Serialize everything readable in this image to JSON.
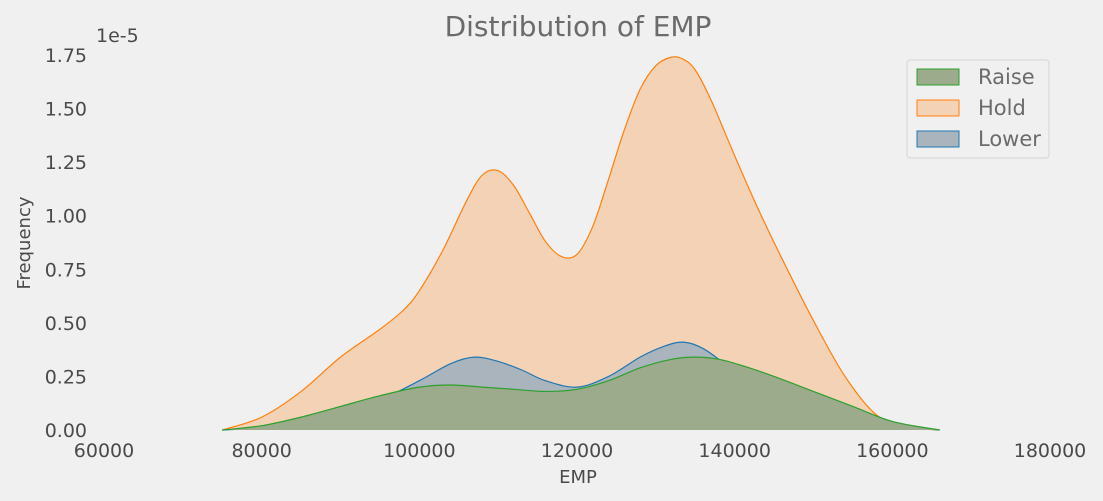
{
  "chart_data": {
    "type": "area",
    "title": "Distribution of EMP",
    "xlabel": "EMP",
    "ylabel": "Frequency",
    "y_scale_label": "1e-5",
    "xlim": [
      60000,
      180000
    ],
    "ylim": [
      0,
      1.82
    ],
    "xticks": [
      60000,
      80000,
      100000,
      120000,
      140000,
      160000,
      180000
    ],
    "yticks": [
      0.0,
      0.25,
      0.5,
      0.75,
      1.0,
      1.25,
      1.5,
      1.75
    ],
    "ytick_labels": [
      "0.00",
      "0.25",
      "0.50",
      "0.75",
      "1.00",
      "1.25",
      "1.50",
      "1.75"
    ],
    "grid": false,
    "legend_position": "top-right",
    "series": [
      {
        "name": "Hold",
        "color": "#ff7f0e",
        "fill": "#f4d2b6",
        "x": [
          75000,
          80000,
          85000,
          90000,
          95000,
          98000,
          100000,
          103000,
          106000,
          108000,
          110000,
          112000,
          114000,
          116000,
          118000,
          120000,
          122000,
          124000,
          126000,
          128000,
          130000,
          132000,
          133500,
          135000,
          137000,
          140000,
          143000,
          146000,
          150000,
          154000,
          158000,
          162000,
          166000
        ],
        "values": [
          0.0,
          0.06,
          0.18,
          0.34,
          0.47,
          0.56,
          0.65,
          0.84,
          1.07,
          1.19,
          1.21,
          1.14,
          1.01,
          0.88,
          0.81,
          0.82,
          0.95,
          1.17,
          1.4,
          1.59,
          1.7,
          1.74,
          1.73,
          1.68,
          1.54,
          1.28,
          1.03,
          0.8,
          0.51,
          0.25,
          0.07,
          0.015,
          0.0
        ]
      },
      {
        "name": "Lower",
        "color": "#1f77b4",
        "fill": "#aab4bd",
        "x": [
          75000,
          80000,
          85000,
          90000,
          95000,
          100000,
          104000,
          107000,
          110000,
          113000,
          116000,
          120000,
          124000,
          128000,
          131000,
          133500,
          136000,
          139000,
          142000,
          146000,
          150000,
          155000,
          160000,
          166000
        ],
        "values": [
          0.0,
          0.01,
          0.03,
          0.08,
          0.14,
          0.23,
          0.31,
          0.34,
          0.32,
          0.28,
          0.23,
          0.2,
          0.25,
          0.34,
          0.39,
          0.41,
          0.38,
          0.3,
          0.2,
          0.13,
          0.08,
          0.05,
          0.02,
          0.0
        ]
      },
      {
        "name": "Raise",
        "color": "#2ca02c",
        "fill": "#9dab8d",
        "x": [
          75000,
          80000,
          85000,
          90000,
          95000,
          100000,
          104000,
          108000,
          112000,
          116000,
          120000,
          124000,
          128000,
          132000,
          135000,
          138000,
          141000,
          145000,
          150000,
          155000,
          160000,
          166000
        ],
        "values": [
          0.0,
          0.02,
          0.06,
          0.11,
          0.16,
          0.2,
          0.21,
          0.2,
          0.19,
          0.18,
          0.19,
          0.23,
          0.29,
          0.33,
          0.34,
          0.33,
          0.3,
          0.25,
          0.18,
          0.11,
          0.04,
          0.0
        ]
      }
    ],
    "legend_order": [
      "Raise",
      "Hold",
      "Lower"
    ]
  }
}
